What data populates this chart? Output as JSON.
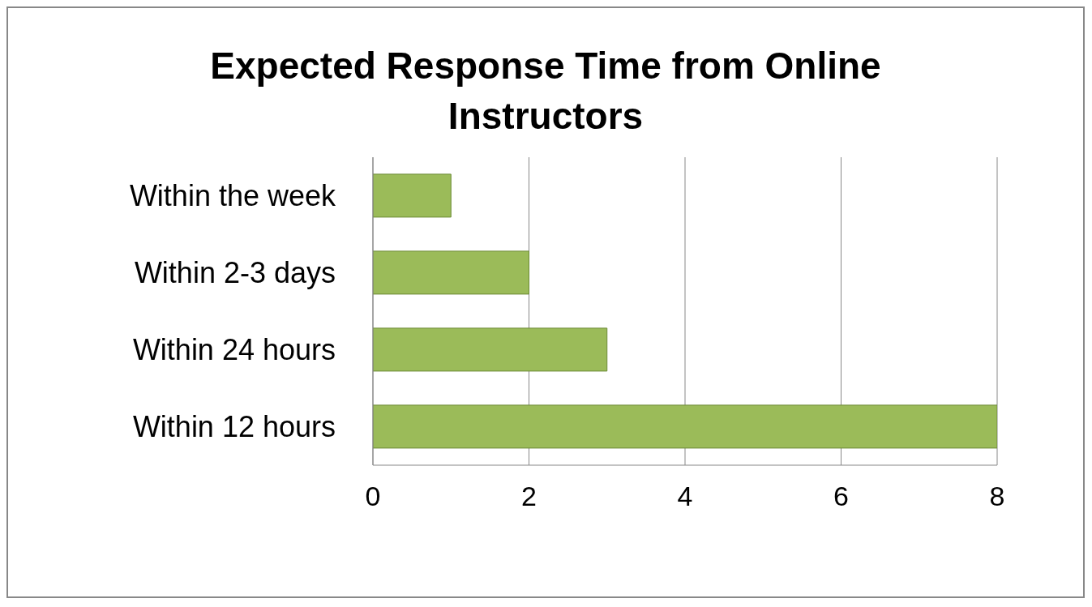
{
  "chart_data": {
    "type": "bar",
    "orientation": "horizontal",
    "title": "Expected Response Time from Online Instructors",
    "categories": [
      "Within the week",
      "Within 2-3 days",
      "Within 24 hours",
      "Within 12 hours"
    ],
    "values": [
      1,
      2,
      3,
      8
    ],
    "color": "#9bbb59",
    "xlim": [
      0,
      8
    ],
    "xticks": [
      0,
      2,
      4,
      6,
      8
    ],
    "grid": "x"
  }
}
